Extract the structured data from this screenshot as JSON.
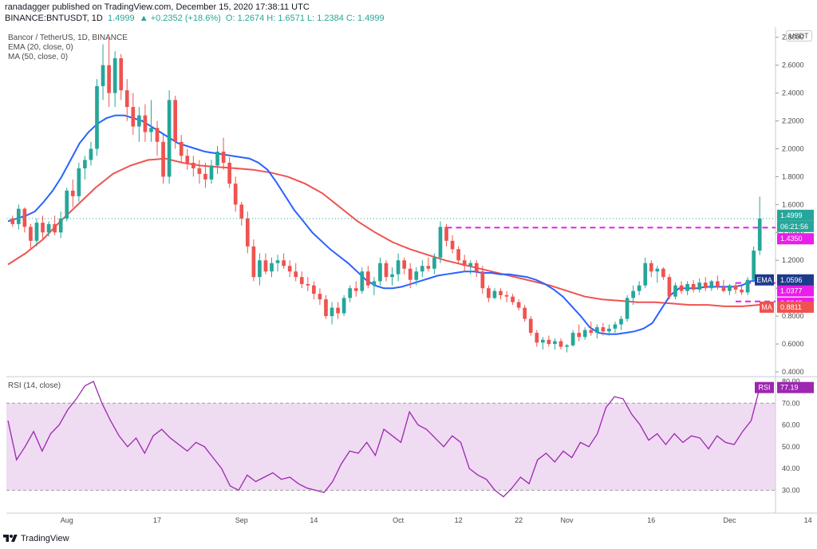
{
  "header": {
    "published": "ranadagger published on TradingView.com, December 15, 2020 17:38:11 UTC",
    "ticker": "BINANCE:BNTUSDT, 1D",
    "last": "1.4999",
    "change": "▲ +0.2352 (+18.6%)",
    "ohlc": "O: 1.2674  H: 1.6571  L: 1.2384  C: 1.4999"
  },
  "legend": {
    "title": "Bancor / TetherUS, 1D, BINANCE",
    "ema": "EMA (20, close, 0)",
    "ma": "MA (50, close, 0)",
    "rsi": "RSI (14, close)"
  },
  "currency_badge": "USDT",
  "footer": {
    "brand": "TradingView"
  },
  "colors": {
    "up": "#26a69a",
    "down": "#ef5350",
    "ema": "#2962ff",
    "ma": "#ef5350",
    "rsi": "#9c27b0",
    "rsi_band": "#e1bee7",
    "level": "#e91ee9",
    "last_price": "#26a69a"
  },
  "chart_data": [
    {
      "type": "candlestick",
      "title": "Bancor / TetherUS, 1D, BINANCE",
      "ylim": [
        0.4,
        2.85
      ],
      "y_ticks": [
        "0.4000",
        "0.6000",
        "0.8000",
        "1.0000",
        "1.2000",
        "1.4000",
        "1.6000",
        "1.8000",
        "2.0000",
        "2.2000",
        "2.4000",
        "2.6000",
        "2.8000"
      ],
      "x_ticks": [
        "Aug",
        "17",
        "Sep",
        "14",
        "Oct",
        "12",
        "22",
        "Nov",
        "16",
        "Dec",
        "14"
      ],
      "x_tick_index": [
        9,
        24,
        38,
        50,
        64,
        74,
        84,
        92,
        106,
        119,
        132
      ],
      "ohlc": [
        [
          1.5,
          1.52,
          1.44,
          1.46
        ],
        [
          1.46,
          1.6,
          1.42,
          1.57
        ],
        [
          1.57,
          1.58,
          1.4,
          1.44
        ],
        [
          1.44,
          1.46,
          1.28,
          1.34
        ],
        [
          1.34,
          1.5,
          1.3,
          1.47
        ],
        [
          1.47,
          1.52,
          1.35,
          1.4
        ],
        [
          1.4,
          1.48,
          1.37,
          1.46
        ],
        [
          1.46,
          1.52,
          1.38,
          1.4
        ],
        [
          1.4,
          1.55,
          1.36,
          1.5
        ],
        [
          1.5,
          1.72,
          1.48,
          1.7
        ],
        [
          1.7,
          1.78,
          1.58,
          1.66
        ],
        [
          1.66,
          1.9,
          1.62,
          1.86
        ],
        [
          1.86,
          1.95,
          1.78,
          1.92
        ],
        [
          1.92,
          2.05,
          1.88,
          2.0
        ],
        [
          2.0,
          2.5,
          1.95,
          2.45
        ],
        [
          2.45,
          2.75,
          2.35,
          2.6
        ],
        [
          2.6,
          2.8,
          2.3,
          2.4
        ],
        [
          2.4,
          2.7,
          2.3,
          2.65
        ],
        [
          2.65,
          2.68,
          2.35,
          2.42
        ],
        [
          2.42,
          2.5,
          2.2,
          2.3
        ],
        [
          2.3,
          2.4,
          2.1,
          2.16
        ],
        [
          2.16,
          2.3,
          2.05,
          2.24
        ],
        [
          2.24,
          2.32,
          2.05,
          2.12
        ],
        [
          2.12,
          2.35,
          2.05,
          2.15
        ],
        [
          2.15,
          2.2,
          1.95,
          2.05
        ],
        [
          2.05,
          2.1,
          1.75,
          1.8
        ],
        [
          1.8,
          2.42,
          1.75,
          2.35
        ],
        [
          2.35,
          2.38,
          2.0,
          2.05
        ],
        [
          2.05,
          2.1,
          1.9,
          1.95
        ],
        [
          1.95,
          2.0,
          1.85,
          1.9
        ],
        [
          1.9,
          1.95,
          1.8,
          1.86
        ],
        [
          1.86,
          1.92,
          1.75,
          1.82
        ],
        [
          1.82,
          1.9,
          1.72,
          1.78
        ],
        [
          1.78,
          1.92,
          1.75,
          1.88
        ],
        [
          1.88,
          2.02,
          1.82,
          1.98
        ],
        [
          1.98,
          2.08,
          1.85,
          1.9
        ],
        [
          1.9,
          1.94,
          1.72,
          1.75
        ],
        [
          1.75,
          1.8,
          1.55,
          1.6
        ],
        [
          1.6,
          1.62,
          1.45,
          1.5
        ],
        [
          1.5,
          1.55,
          1.25,
          1.3
        ],
        [
          1.3,
          1.35,
          1.05,
          1.08
        ],
        [
          1.08,
          1.25,
          1.02,
          1.2
        ],
        [
          1.2,
          1.25,
          1.1,
          1.12
        ],
        [
          1.12,
          1.22,
          1.08,
          1.18
        ],
        [
          1.18,
          1.24,
          1.12,
          1.2
        ],
        [
          1.2,
          1.25,
          1.14,
          1.16
        ],
        [
          1.16,
          1.2,
          1.08,
          1.12
        ],
        [
          1.12,
          1.18,
          1.05,
          1.08
        ],
        [
          1.08,
          1.12,
          1.0,
          1.03
        ],
        [
          1.03,
          1.08,
          0.98,
          1.02
        ],
        [
          1.02,
          1.05,
          0.92,
          0.96
        ],
        [
          0.96,
          1.0,
          0.88,
          0.92
        ],
        [
          0.92,
          0.95,
          0.78,
          0.8
        ],
        [
          0.8,
          0.9,
          0.74,
          0.86
        ],
        [
          0.86,
          0.9,
          0.78,
          0.82
        ],
        [
          0.82,
          0.95,
          0.8,
          0.93
        ],
        [
          0.93,
          1.02,
          0.9,
          1.0
        ],
        [
          1.0,
          1.05,
          0.94,
          0.98
        ],
        [
          0.98,
          1.15,
          0.96,
          1.12
        ],
        [
          1.12,
          1.16,
          1.0,
          1.02
        ],
        [
          1.02,
          1.08,
          0.95,
          1.05
        ],
        [
          1.05,
          1.22,
          1.02,
          1.18
        ],
        [
          1.18,
          1.2,
          1.05,
          1.08
        ],
        [
          1.08,
          1.15,
          1.02,
          1.1
        ],
        [
          1.1,
          1.25,
          1.05,
          1.2
        ],
        [
          1.2,
          1.22,
          1.1,
          1.14
        ],
        [
          1.14,
          1.18,
          1.0,
          1.06
        ],
        [
          1.06,
          1.15,
          1.02,
          1.12
        ],
        [
          1.12,
          1.2,
          1.08,
          1.16
        ],
        [
          1.16,
          1.22,
          1.12,
          1.14
        ],
        [
          1.14,
          1.25,
          1.1,
          1.22
        ],
        [
          1.22,
          1.48,
          1.18,
          1.44
        ],
        [
          1.44,
          1.46,
          1.3,
          1.34
        ],
        [
          1.34,
          1.38,
          1.25,
          1.28
        ],
        [
          1.28,
          1.3,
          1.18,
          1.2
        ],
        [
          1.2,
          1.24,
          1.12,
          1.16
        ],
        [
          1.16,
          1.2,
          1.1,
          1.18
        ],
        [
          1.18,
          1.2,
          1.08,
          1.12
        ],
        [
          1.12,
          1.16,
          0.96,
          1.0
        ],
        [
          1.0,
          1.02,
          0.9,
          0.93
        ],
        [
          0.93,
          1.0,
          0.92,
          0.98
        ],
        [
          0.98,
          1.0,
          0.92,
          0.95
        ],
        [
          0.95,
          0.98,
          0.9,
          0.94
        ],
        [
          0.94,
          0.96,
          0.88,
          0.9
        ],
        [
          0.9,
          0.92,
          0.84,
          0.86
        ],
        [
          0.86,
          0.88,
          0.76,
          0.78
        ],
        [
          0.78,
          0.8,
          0.66,
          0.68
        ],
        [
          0.68,
          0.7,
          0.58,
          0.61
        ],
        [
          0.61,
          0.65,
          0.56,
          0.63
        ],
        [
          0.63,
          0.66,
          0.58,
          0.6
        ],
        [
          0.6,
          0.64,
          0.56,
          0.62
        ],
        [
          0.62,
          0.64,
          0.56,
          0.58
        ],
        [
          0.58,
          0.6,
          0.54,
          0.59
        ],
        [
          0.59,
          0.7,
          0.58,
          0.68
        ],
        [
          0.68,
          0.74,
          0.62,
          0.65
        ],
        [
          0.65,
          0.72,
          0.63,
          0.7
        ],
        [
          0.7,
          0.76,
          0.66,
          0.68
        ],
        [
          0.68,
          0.74,
          0.64,
          0.72
        ],
        [
          0.72,
          0.75,
          0.66,
          0.69
        ],
        [
          0.69,
          0.74,
          0.66,
          0.71
        ],
        [
          0.71,
          0.76,
          0.68,
          0.74
        ],
        [
          0.74,
          0.8,
          0.7,
          0.78
        ],
        [
          0.78,
          0.95,
          0.76,
          0.93
        ],
        [
          0.93,
          1.02,
          0.88,
          0.98
        ],
        [
          0.98,
          1.05,
          0.95,
          1.02
        ],
        [
          1.02,
          1.22,
          1.0,
          1.18
        ],
        [
          1.18,
          1.2,
          1.08,
          1.12
        ],
        [
          1.12,
          1.16,
          1.04,
          1.14
        ],
        [
          1.14,
          1.15,
          1.06,
          1.08
        ],
        [
          1.08,
          1.1,
          0.92,
          0.94
        ],
        [
          0.94,
          1.04,
          0.92,
          1.02
        ],
        [
          1.02,
          1.05,
          0.96,
          0.98
        ],
        [
          0.98,
          1.05,
          0.95,
          1.03
        ],
        [
          1.03,
          1.06,
          0.97,
          0.99
        ],
        [
          0.99,
          1.07,
          0.97,
          1.04
        ],
        [
          1.04,
          1.08,
          0.98,
          1.0
        ],
        [
          1.0,
          1.06,
          0.98,
          1.05
        ],
        [
          1.05,
          1.09,
          0.99,
          1.01
        ],
        [
          1.01,
          1.06,
          0.97,
          0.98
        ],
        [
          0.98,
          1.03,
          0.95,
          1.02
        ],
        [
          1.02,
          1.04,
          0.96,
          0.99
        ],
        [
          0.99,
          1.03,
          0.95,
          0.97
        ],
        [
          0.97,
          1.08,
          0.95,
          1.06
        ],
        [
          1.06,
          1.3,
          1.04,
          1.27
        ],
        [
          1.27,
          1.657,
          1.238,
          1.4999
        ]
      ],
      "ema20": [
        1.48,
        1.5,
        1.52,
        1.55,
        1.62,
        1.7,
        1.8,
        1.92,
        2.04,
        2.12,
        2.18,
        2.22,
        2.24,
        2.24,
        2.22,
        2.2,
        2.16,
        2.12,
        2.08,
        2.04,
        2.02,
        2.0,
        1.98,
        1.97,
        1.96,
        1.95,
        1.94,
        1.93,
        1.9,
        1.85,
        1.76,
        1.66,
        1.56,
        1.48,
        1.4,
        1.34,
        1.28,
        1.23,
        1.18,
        1.12,
        1.06,
        1.02,
        1.0,
        1.0,
        1.01,
        1.03,
        1.05,
        1.07,
        1.09,
        1.1,
        1.11,
        1.12,
        1.12,
        1.11,
        1.11,
        1.1,
        1.1,
        1.09,
        1.08,
        1.06,
        1.03,
        0.99,
        0.94,
        0.87,
        0.8,
        0.72,
        0.68,
        0.67,
        0.67,
        0.68,
        0.69,
        0.71,
        0.75,
        0.85,
        0.95,
        1.0,
        1.0,
        1.0,
        1.01,
        1.01,
        1.01,
        1.01,
        1.02,
        1.05,
        1.0596
      ],
      "ema20_x": [
        0,
        3,
        6,
        9,
        12,
        15,
        18,
        21,
        24,
        27,
        30,
        33,
        35,
        37,
        39,
        41,
        43,
        45,
        47,
        49,
        51,
        53,
        55,
        57,
        59,
        61,
        63,
        65,
        67,
        69,
        71,
        73,
        75,
        77,
        79,
        81,
        83,
        85,
        87,
        89,
        91,
        93,
        95,
        97,
        99,
        101,
        103,
        105,
        107,
        109,
        111,
        113,
        115,
        117,
        119,
        121,
        123,
        125,
        127,
        129,
        131,
        133,
        135,
        137,
        139,
        141,
        143,
        145,
        147,
        149,
        151,
        153,
        155,
        157,
        159,
        161,
        163,
        165,
        167,
        169,
        171,
        173,
        175,
        177,
        133
      ],
      "ma50": [
        1.17,
        1.25,
        1.35,
        1.48,
        1.6,
        1.72,
        1.82,
        1.88,
        1.92,
        1.93,
        1.9,
        1.88,
        1.87,
        1.86,
        1.85,
        1.83,
        1.8,
        1.75,
        1.68,
        1.58,
        1.48,
        1.4,
        1.33,
        1.28,
        1.24,
        1.2,
        1.17,
        1.14,
        1.11,
        1.08,
        1.05,
        1.02,
        0.98,
        0.94,
        0.92,
        0.91,
        0.9,
        0.9,
        0.89,
        0.88,
        0.88,
        0.87,
        0.87,
        0.8811
      ],
      "rsi": [
        62,
        44,
        50,
        57,
        48,
        56,
        60,
        67,
        72,
        78,
        80,
        70,
        62,
        55,
        50,
        54,
        47,
        55,
        58,
        54,
        51,
        48,
        52,
        50,
        45,
        40,
        32,
        30,
        37,
        34,
        36,
        38,
        35,
        36,
        33,
        31,
        30,
        29,
        34,
        42,
        48,
        47,
        52,
        46,
        58,
        55,
        52,
        66,
        60,
        58,
        54,
        50,
        55,
        52,
        40,
        37,
        35,
        30,
        27,
        31,
        36,
        33,
        44,
        47,
        43,
        48,
        45,
        52,
        50,
        56,
        68,
        73,
        72,
        65,
        60,
        53,
        56,
        51,
        56,
        52,
        55,
        54,
        49,
        55,
        52,
        51,
        57,
        62,
        77.19
      ],
      "rsi_ylim": [
        25,
        80
      ],
      "rsi_ticks": [
        "30.00",
        "40.00",
        "50.00",
        "60.00",
        "70.00",
        "80.00"
      ],
      "rsi_band": [
        30,
        70
      ],
      "levels": [
        {
          "label": "1.4350",
          "value": 1.435
        },
        {
          "label": "1.0377",
          "value": 1.0377
        },
        {
          "label": "0.9049",
          "value": 0.9049
        }
      ],
      "price_labels": [
        {
          "label": "1.4999",
          "value": 1.4999,
          "kind": "last"
        },
        {
          "label": "06:21:56",
          "value": 1.4999,
          "kind": "countdown"
        },
        {
          "label": "1.0596",
          "value": 1.0596,
          "kind": "ema",
          "tag": "EMA"
        },
        {
          "label": "0.8811",
          "value": 0.8811,
          "kind": "ma",
          "tag": "MA"
        },
        {
          "label": "77.19",
          "value": 77.19,
          "kind": "rsi",
          "tag": "RSI"
        }
      ]
    }
  ]
}
